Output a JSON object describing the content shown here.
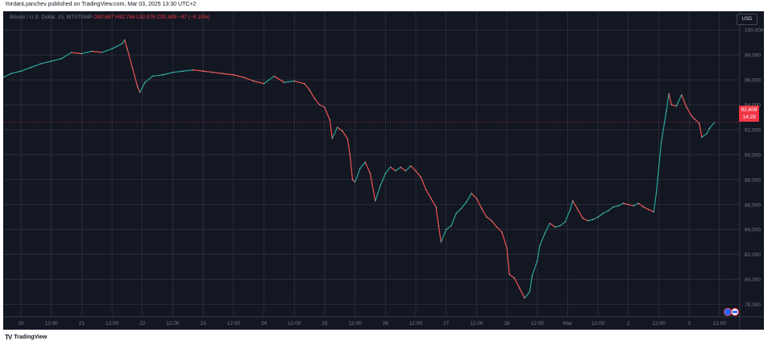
{
  "header": {
    "text": "YordanLyanchev published on TradingView.com, Mar 03, 2025 13:30 UTC+2"
  },
  "legend": {
    "symbol": "Bitcoin / U.S. Dollar, 15, BITSTAMP",
    "ohlc": "O92,687 H92,746 L92,576 C92,609 −97 (−0.10%)"
  },
  "currency_button": {
    "label": "USD"
  },
  "price_tag": {
    "price": "92,609",
    "countdown": "14:29"
  },
  "footer": {
    "logo": "TV",
    "brand": "TradingView"
  },
  "colors": {
    "background": "#131722",
    "grid": "#363a45",
    "up": "#26a69a",
    "down": "#ef5350",
    "axis_text": "#787b86",
    "tag": "#f23645"
  },
  "chart_data": {
    "type": "line",
    "title": "Bitcoin / U.S. Dollar, 15, BITSTAMP",
    "xlabel": "",
    "ylabel": "",
    "ylim": [
      77000,
      101500
    ],
    "y_ticks": [
      100000,
      98000,
      96000,
      94000,
      92000,
      90000,
      88000,
      86000,
      84000,
      82000,
      80000,
      78000
    ],
    "y_tick_labels": [
      "100,000",
      "98,000",
      "96,000",
      "94,000",
      "92,000",
      "90,000",
      "88,000",
      "86,000",
      "84,000",
      "82,000",
      "80,000",
      "78,000"
    ],
    "x_ticks": [
      {
        "t": 0,
        "label": "20"
      },
      {
        "t": 12,
        "label": "12:00"
      },
      {
        "t": 24,
        "label": "21"
      },
      {
        "t": 36,
        "label": "12:00"
      },
      {
        "t": 48,
        "label": "22"
      },
      {
        "t": 60,
        "label": "12:00"
      },
      {
        "t": 72,
        "label": "23"
      },
      {
        "t": 84,
        "label": "12:00"
      },
      {
        "t": 96,
        "label": "24"
      },
      {
        "t": 108,
        "label": "12:00"
      },
      {
        "t": 120,
        "label": "25"
      },
      {
        "t": 132,
        "label": "12:00"
      },
      {
        "t": 144,
        "label": "26"
      },
      {
        "t": 156,
        "label": "12:00"
      },
      {
        "t": 168,
        "label": "27"
      },
      {
        "t": 180,
        "label": "12:00"
      },
      {
        "t": 192,
        "label": "28"
      },
      {
        "t": 204,
        "label": "12:00"
      },
      {
        "t": 216,
        "label": "Mar"
      },
      {
        "t": 228,
        "label": "12:00"
      },
      {
        "t": 240,
        "label": "2"
      },
      {
        "t": 252,
        "label": "12:00"
      },
      {
        "t": 264,
        "label": "3"
      },
      {
        "t": 276,
        "label": "12:00"
      }
    ],
    "xlim": [
      -7,
      284
    ],
    "series": [
      {
        "points": [
          [
            -7,
            96200
          ],
          [
            -4,
            96500
          ],
          [
            0,
            96700
          ],
          [
            4,
            97000
          ],
          [
            8,
            97300
          ],
          [
            12,
            97500
          ],
          [
            16,
            97700
          ],
          [
            20,
            98200
          ],
          [
            24,
            98100
          ],
          [
            28,
            98300
          ],
          [
            32,
            98200
          ],
          [
            36,
            98500
          ],
          [
            40,
            98900
          ],
          [
            41,
            99200
          ],
          [
            42,
            98500
          ],
          [
            44,
            97000
          ],
          [
            46,
            95500
          ],
          [
            47,
            95000
          ],
          [
            49,
            95800
          ],
          [
            52,
            96300
          ],
          [
            56,
            96400
          ],
          [
            60,
            96600
          ],
          [
            64,
            96700
          ],
          [
            68,
            96800
          ],
          [
            72,
            96700
          ],
          [
            76,
            96600
          ],
          [
            80,
            96500
          ],
          [
            84,
            96400
          ],
          [
            88,
            96200
          ],
          [
            92,
            95900
          ],
          [
            96,
            95700
          ],
          [
            100,
            96300
          ],
          [
            104,
            95800
          ],
          [
            108,
            95900
          ],
          [
            112,
            95700
          ],
          [
            114,
            95200
          ],
          [
            116,
            94500
          ],
          [
            118,
            94000
          ],
          [
            120,
            93800
          ],
          [
            122,
            92800
          ],
          [
            123,
            91300
          ],
          [
            125,
            92200
          ],
          [
            127,
            91900
          ],
          [
            129,
            91300
          ],
          [
            130,
            90000
          ],
          [
            131,
            88000
          ],
          [
            132,
            87800
          ],
          [
            134,
            88900
          ],
          [
            136,
            89400
          ],
          [
            138,
            88500
          ],
          [
            140,
            86300
          ],
          [
            142,
            87500
          ],
          [
            144,
            88500
          ],
          [
            146,
            89000
          ],
          [
            148,
            88700
          ],
          [
            150,
            89000
          ],
          [
            152,
            88700
          ],
          [
            154,
            89100
          ],
          [
            156,
            88700
          ],
          [
            158,
            88200
          ],
          [
            160,
            87200
          ],
          [
            162,
            86500
          ],
          [
            164,
            85800
          ],
          [
            165,
            84300
          ],
          [
            166,
            83000
          ],
          [
            168,
            84000
          ],
          [
            170,
            84300
          ],
          [
            172,
            85300
          ],
          [
            174,
            85700
          ],
          [
            176,
            86200
          ],
          [
            178,
            86900
          ],
          [
            180,
            86500
          ],
          [
            182,
            85700
          ],
          [
            184,
            85000
          ],
          [
            186,
            84700
          ],
          [
            188,
            84200
          ],
          [
            190,
            83800
          ],
          [
            192,
            82500
          ],
          [
            193,
            80400
          ],
          [
            195,
            80100
          ],
          [
            197,
            79300
          ],
          [
            199,
            78500
          ],
          [
            201,
            79000
          ],
          [
            202,
            80300
          ],
          [
            204,
            81500
          ],
          [
            205,
            82700
          ],
          [
            207,
            83700
          ],
          [
            209,
            84500
          ],
          [
            211,
            84200
          ],
          [
            213,
            84300
          ],
          [
            215,
            84600
          ],
          [
            217,
            85600
          ],
          [
            218,
            86300
          ],
          [
            220,
            85600
          ],
          [
            222,
            84900
          ],
          [
            224,
            84700
          ],
          [
            226,
            84800
          ],
          [
            228,
            85000
          ],
          [
            230,
            85300
          ],
          [
            232,
            85500
          ],
          [
            234,
            85800
          ],
          [
            236,
            85900
          ],
          [
            238,
            86100
          ],
          [
            240,
            86000
          ],
          [
            242,
            85900
          ],
          [
            244,
            86100
          ],
          [
            246,
            85800
          ],
          [
            248,
            85600
          ],
          [
            250,
            85400
          ],
          [
            251,
            86900
          ],
          [
            253,
            91000
          ],
          [
            255,
            93500
          ],
          [
            256,
            94900
          ],
          [
            257,
            94000
          ],
          [
            259,
            93900
          ],
          [
            261,
            94800
          ],
          [
            263,
            93800
          ],
          [
            265,
            93100
          ],
          [
            266,
            92900
          ],
          [
            268,
            92500
          ],
          [
            269,
            91400
          ],
          [
            271,
            91700
          ],
          [
            272,
            92100
          ],
          [
            274,
            92600
          ]
        ]
      }
    ]
  }
}
